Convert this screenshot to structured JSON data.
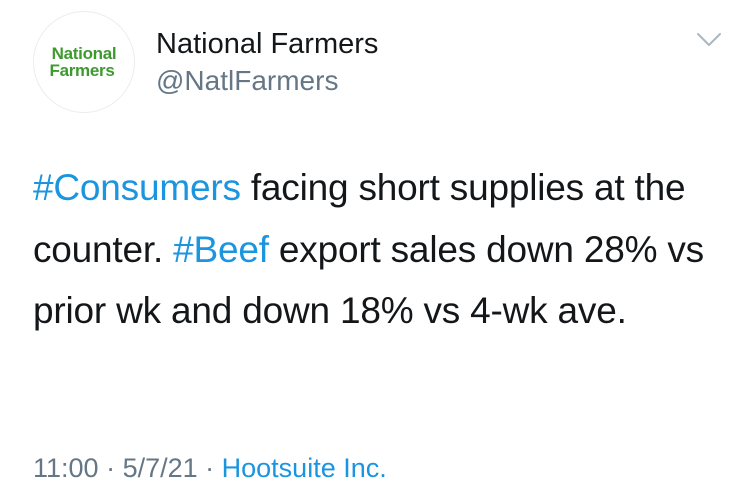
{
  "author": {
    "display_name": "National Farmers",
    "handle": "@NatlFarmers",
    "avatar_logo_line1": "National",
    "avatar_logo_line2": "Farmers"
  },
  "menu": {
    "icon": "chevron-down-icon"
  },
  "tweet": {
    "hashtag_consumers": "#Consumers",
    "text_1": " facing short supplies at the counter. ",
    "hashtag_beef": "#Beef",
    "text_2": " export sales down 28% vs prior wk and down 18% vs 4-wk ave."
  },
  "meta": {
    "time": "11:00",
    "separator_1": " · ",
    "date": "5/7/21",
    "separator_2": " · ",
    "source": "Hootsuite Inc."
  },
  "colors": {
    "link": "#1b95e0",
    "secondary_text": "#657786",
    "logo_green": "#3d9b2e"
  }
}
